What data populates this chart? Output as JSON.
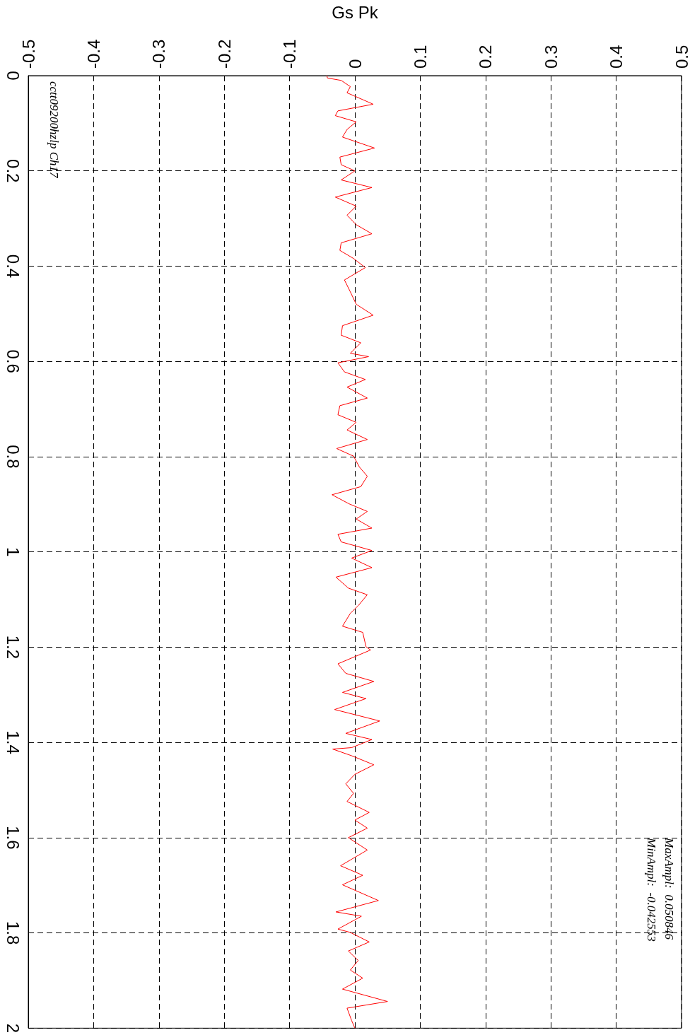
{
  "chart_data": {
    "type": "line",
    "xlabel": "Gs Pk",
    "x": [
      -0.043,
      -0.042,
      -0.021,
      -0.007,
      -0.012,
      -0.002,
      0.028,
      -0.026,
      -0.03,
      0.002,
      -0.012,
      -0.019,
      0.03,
      -0.023,
      -0.021,
      0,
      -0.021,
      0.026,
      -0.03,
      0.002,
      -0.012,
      0.002,
      0.026,
      -0.021,
      -0.023,
      -0.002,
      0.016,
      -0.016,
      -0.007,
      0.002,
      0.028,
      -0.019,
      -0.021,
      0.009,
      -0.007,
      0.021,
      -0.026,
      -0.016,
      0.016,
      -0.012,
      0.019,
      -0.023,
      -0.026,
      0.002,
      -0.012,
      0.019,
      -0.028,
      -0.002,
      0.007,
      0.019,
      0.009,
      -0.035,
      -0.009,
      0.019,
      0.002,
      0.026,
      -0.026,
      -0.021,
      0.026,
      -0.005,
      0.026,
      -0.029,
      -0.01,
      0.019,
      0.005,
      -0.007,
      -0.019,
      0.012,
      0.017,
      0.024,
      -0.026,
      -0.014,
      0.029,
      -0.019,
      0.017,
      -0.031,
      0.038,
      -0.014,
      0.026,
      -0.005,
      -0.034,
      -0.005,
      0.029,
      0,
      -0.014,
      -0.002,
      -0.012,
      0.022,
      0,
      0.019,
      -0.01,
      0.019,
      -0.022,
      0.012,
      -0.019,
      0.036,
      -0.029,
      0.01,
      -0.026,
      -0.007,
      0.022,
      -0.01,
      0.005,
      -0.007,
      0.012,
      -0.019,
      0.05,
      -0.012,
      -0.005,
      0
    ],
    "series": [
      {
        "color": "#ff0000",
        "values": [
          0,
          0.005,
          0.01,
          0.023,
          0.036,
          0.042,
          0.06,
          0.074,
          0.084,
          0.097,
          0.113,
          0.129,
          0.152,
          0.171,
          0.187,
          0.2,
          0.219,
          0.235,
          0.255,
          0.274,
          0.293,
          0.313,
          0.332,
          0.351,
          0.367,
          0.384,
          0.403,
          0.429,
          0.454,
          0.48,
          0.503,
          0.525,
          0.545,
          0.561,
          0.583,
          0.59,
          0.603,
          0.622,
          0.638,
          0.654,
          0.677,
          0.693,
          0.712,
          0.728,
          0.744,
          0.764,
          0.783,
          0.799,
          0.822,
          0.841,
          0.863,
          0.88,
          0.899,
          0.915,
          0.931,
          0.95,
          0.963,
          0.979,
          0.997,
          1.013,
          1.033,
          1.053,
          1.076,
          1.09,
          1.113,
          1.129,
          1.156,
          1.169,
          1.199,
          1.206,
          1.235,
          1.255,
          1.272,
          1.295,
          1.308,
          1.331,
          1.355,
          1.381,
          1.394,
          1.411,
          1.414,
          1.428,
          1.447,
          1.467,
          1.487,
          1.507,
          1.524,
          1.547,
          1.563,
          1.58,
          1.6,
          1.626,
          1.659,
          1.679,
          1.699,
          1.732,
          1.756,
          1.765,
          1.792,
          1.799,
          1.819,
          1.838,
          1.858,
          1.878,
          1.895,
          1.918,
          1.944,
          1.958,
          1.984,
          2.0
        ]
      }
    ],
    "xlim": [
      -0.5,
      0.5
    ],
    "xticks": [
      -0.5,
      -0.4,
      -0.3,
      -0.2,
      -0.1,
      0,
      0.1,
      0.2,
      0.3,
      0.4,
      0.5
    ],
    "ylim": [
      2,
      0
    ],
    "yticks": [
      0,
      0.2,
      0.4,
      0.6,
      0.8,
      1,
      1.2,
      1.4,
      1.6,
      1.8,
      2
    ],
    "grid": true,
    "line_style": "solid",
    "annotations": [
      "cctt09200hzlp Ch17",
      "MaxAmpl:  0.050846",
      "MinAmpl:  -0.042553"
    ]
  }
}
